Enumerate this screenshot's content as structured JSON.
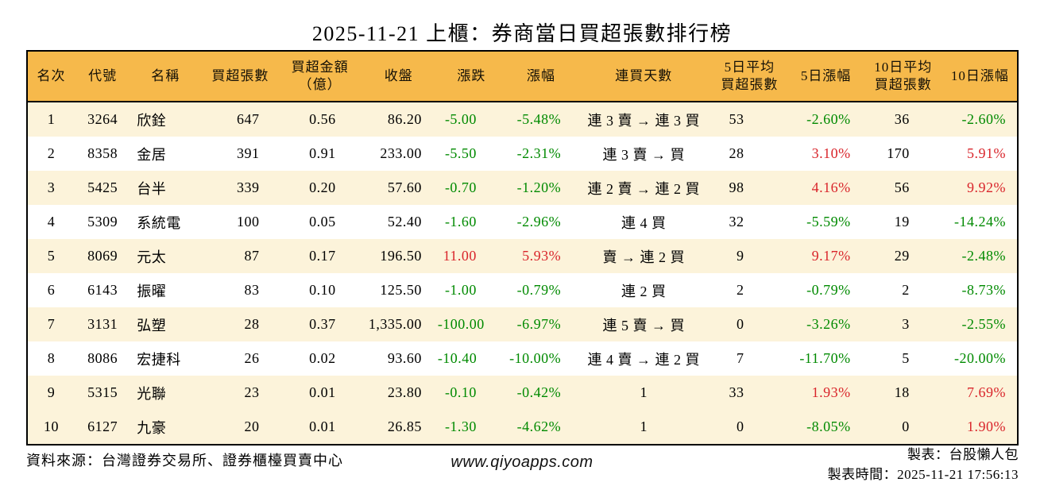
{
  "chart_data": {
    "type": "table",
    "title": "2025-11-21 上櫃：券商當日買超張數排行榜",
    "columns": [
      "名次",
      "代號",
      "名稱",
      "買超張數",
      "買超金額\n（億）",
      "收盤",
      "漲跌",
      "漲幅",
      "連買天數",
      "5日平均\n買超張數",
      "5日漲幅",
      "10日平均\n買超張數",
      "10日漲幅"
    ],
    "column_keys": [
      "rank",
      "code",
      "name",
      "net-buy-shares",
      "net-buy-amount",
      "close",
      "change",
      "change-pct",
      "streak",
      "avg5-net-buy",
      "pct5",
      "avg10-net-buy",
      "pct10"
    ],
    "sign_color_columns": [
      6,
      7,
      10,
      12
    ],
    "rows": [
      [
        "1",
        "3264",
        "欣銓",
        "647",
        "0.56",
        "86.20",
        "-5.00",
        "-5.48%",
        "連 3 賣 → 連 3 買",
        "53",
        "-2.60%",
        "36",
        "-2.60%"
      ],
      [
        "2",
        "8358",
        "金居",
        "391",
        "0.91",
        "233.00",
        "-5.50",
        "-2.31%",
        "連 3 賣 → 買",
        "28",
        "3.10%",
        "170",
        "5.91%"
      ],
      [
        "3",
        "5425",
        "台半",
        "339",
        "0.20",
        "57.60",
        "-0.70",
        "-1.20%",
        "連 2 賣 → 連 2 買",
        "98",
        "4.16%",
        "56",
        "9.92%"
      ],
      [
        "4",
        "5309",
        "系統電",
        "100",
        "0.05",
        "52.40",
        "-1.60",
        "-2.96%",
        "連 4 買",
        "32",
        "-5.59%",
        "19",
        "-14.24%"
      ],
      [
        "5",
        "8069",
        "元太",
        "87",
        "0.17",
        "196.50",
        "11.00",
        "5.93%",
        "賣 → 連 2 買",
        "9",
        "9.17%",
        "29",
        "-2.48%"
      ],
      [
        "6",
        "6143",
        "振曜",
        "83",
        "0.10",
        "125.50",
        "-1.00",
        "-0.79%",
        "連 2 買",
        "2",
        "-0.79%",
        "2",
        "-8.73%"
      ],
      [
        "7",
        "3131",
        "弘塑",
        "28",
        "0.37",
        "1,335.00",
        "-100.00",
        "-6.97%",
        "連 5 賣 → 買",
        "0",
        "-3.26%",
        "3",
        "-2.55%"
      ],
      [
        "8",
        "8086",
        "宏捷科",
        "26",
        "0.02",
        "93.60",
        "-10.40",
        "-10.00%",
        "連 4 賣 → 連 2 買",
        "7",
        "-11.70%",
        "5",
        "-20.00%"
      ],
      [
        "9",
        "5315",
        "光聯",
        "23",
        "0.01",
        "23.80",
        "-0.10",
        "-0.42%",
        "1",
        "33",
        "1.93%",
        "18",
        "7.69%"
      ],
      [
        "10",
        "6127",
        "九豪",
        "20",
        "0.01",
        "26.85",
        "-1.30",
        "-4.62%",
        "1",
        "0",
        "-8.05%",
        "0",
        "1.90%"
      ]
    ]
  },
  "footer": {
    "source": "資料來源：台灣證券交易所、證券櫃檯買賣中心",
    "website": "www.qiyoapps.com",
    "maker": "製表：台股懶人包",
    "made_time": "製表時間：2025-11-21 17:56:13"
  },
  "colors": {
    "header_bg": "#F6B94B",
    "header_text": "#141006",
    "row_stripe_bg": "#FCF3DA",
    "up_red": "#D9252B",
    "down_green": "#008A00",
    "border": "#000000"
  }
}
